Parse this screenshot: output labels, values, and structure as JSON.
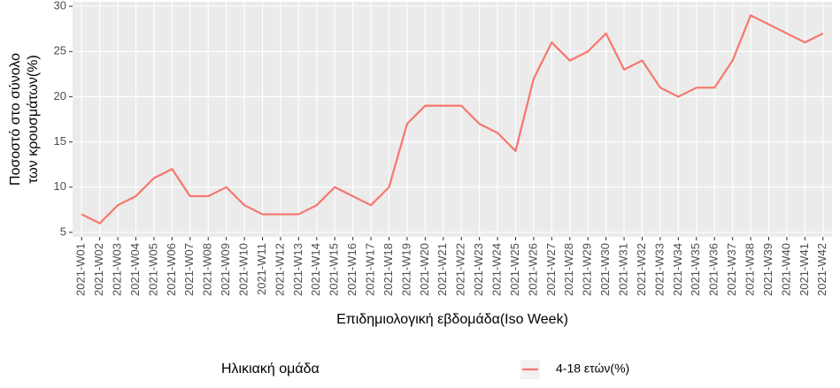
{
  "chart_data": {
    "type": "line",
    "x_label": "Επιδημιολογική εβδομάδα(Iso Week)",
    "y_label": [
      "Ποσοστό στο σύνολο",
      "των κρουσμάτων(%)"
    ],
    "legend_title": "Ηλικιακή ομάδα",
    "categories": [
      "2021-W01",
      "2021-W02",
      "2021-W03",
      "2021-W04",
      "2021-W05",
      "2021-W06",
      "2021-W07",
      "2021-W08",
      "2021-W09",
      "2021-W10",
      "2021-W11",
      "2021-W12",
      "2021-W13",
      "2021-W14",
      "2021-W15",
      "2021-W16",
      "2021-W17",
      "2021-W18",
      "2021-W19",
      "2021-W20",
      "2021-W21",
      "2021-W22",
      "2021-W23",
      "2021-W24",
      "2021-W25",
      "2021-W26",
      "2021-W27",
      "2021-W28",
      "2021-W29",
      "2021-W30",
      "2021-W31",
      "2021-W32",
      "2021-W33",
      "2021-W34",
      "2021-W35",
      "2021-W36",
      "2021-W37",
      "2021-W38",
      "2021-W39",
      "2021-W40",
      "2021-W41",
      "2021-W42"
    ],
    "series": [
      {
        "name": "4-18 ετών(%)",
        "color": "#f8766d",
        "values": [
          7,
          6,
          8,
          9,
          11,
          12,
          9,
          9,
          10,
          8,
          7,
          7,
          7,
          8,
          10,
          9,
          8,
          10,
          17,
          19,
          19,
          19,
          17,
          16,
          14,
          22,
          26,
          24,
          25,
          27,
          23,
          24,
          21,
          20,
          21,
          21,
          24,
          29,
          28,
          27,
          26,
          27
        ]
      }
    ],
    "ylim": [
      4.5,
      30.5
    ],
    "yticks": [
      5,
      10,
      15,
      20,
      25,
      30
    ],
    "grid": true
  }
}
